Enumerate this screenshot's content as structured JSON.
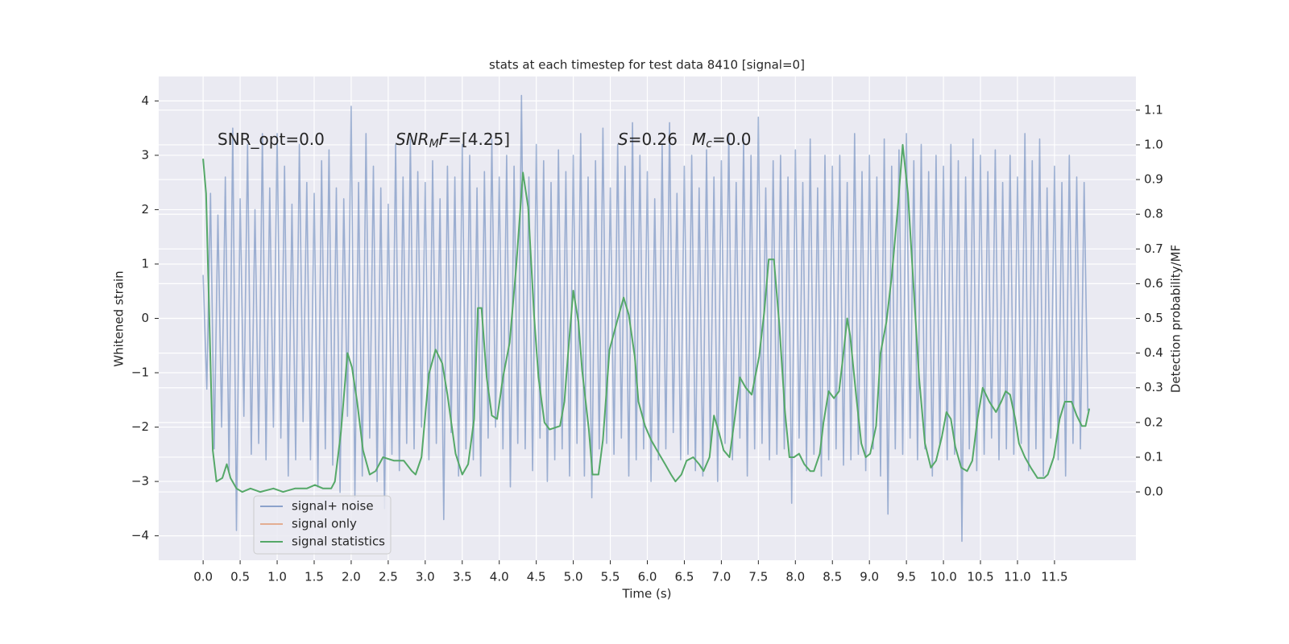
{
  "chart_data": {
    "type": "line",
    "title": "stats at each timestep for test data 8410 [signal=0]",
    "x_label": "Time (s)",
    "y_label": "Whitened strain",
    "y2_label": "Detection probability/MF",
    "annotations": [
      {
        "parts": [
          "SNR_opt=0.0"
        ]
      },
      {
        "parts": [
          "SNR",
          "M",
          "F",
          "=[4.25]"
        ]
      },
      {
        "parts": [
          "S",
          "=0.26"
        ]
      },
      {
        "parts": [
          "M",
          "c",
          "=0.0"
        ]
      }
    ],
    "grid": true,
    "legend_loc": "lower left",
    "xlim": [
      -0.6,
      12.6
    ],
    "ylim": [
      -4.45,
      4.45
    ],
    "y2lim": [
      -0.197,
      1.197
    ],
    "xticks": [
      {
        "value": 0,
        "label": "0.0"
      },
      0.5,
      {
        "value": 1,
        "label": "1.0"
      },
      1.5,
      {
        "value": 2,
        "label": "2.0"
      },
      2.5,
      {
        "value": 3,
        "label": "3.0"
      },
      3.5,
      {
        "value": 4,
        "label": "4.0"
      },
      4.5,
      {
        "value": 5,
        "label": "5.0"
      },
      5.5,
      {
        "value": 6,
        "label": "6.0"
      },
      6.5,
      {
        "value": 7,
        "label": "7.0"
      },
      7.5,
      {
        "value": 8,
        "label": "8.0"
      },
      8.5,
      {
        "value": 9,
        "label": "9.0"
      },
      9.5,
      {
        "value": 10,
        "label": "10.0"
      },
      10.5,
      {
        "value": 11,
        "label": "11.0"
      },
      11.5
    ],
    "yticks": [
      {
        "value": -4,
        "label": "−4"
      },
      {
        "value": -3,
        "label": "−3"
      },
      {
        "value": -2,
        "label": "−2"
      },
      {
        "value": -1,
        "label": "−1"
      },
      0,
      1,
      2,
      3,
      4
    ],
    "y2ticks": [
      {
        "value": 0,
        "label": "0.0"
      },
      0.1,
      0.2,
      0.3,
      0.4,
      0.5,
      0.6,
      0.7,
      0.8,
      0.9,
      {
        "value": 1,
        "label": "1.0"
      },
      1.1
    ],
    "series": [
      {
        "name": "signal+ noise",
        "color": "#4c72b0",
        "x": [
          0,
          0.05,
          0.1,
          0.15,
          0.2,
          0.25,
          0.3,
          0.35,
          0.4,
          0.45,
          0.5,
          0.55,
          0.6,
          0.65,
          0.7,
          0.75,
          0.8,
          0.85,
          0.9,
          0.95,
          1,
          1.05,
          1.1,
          1.15,
          1.2,
          1.25,
          1.3,
          1.35,
          1.4,
          1.45,
          1.5,
          1.55,
          1.6,
          1.65,
          1.7,
          1.75,
          1.8,
          1.85,
          1.9,
          1.95,
          2,
          2.05,
          2.1,
          2.15,
          2.2,
          2.25,
          2.3,
          2.35,
          2.4,
          2.45,
          2.5,
          2.55,
          2.6,
          2.65,
          2.7,
          2.75,
          2.8,
          2.85,
          2.9,
          2.95,
          3,
          3.05,
          3.1,
          3.15,
          3.2,
          3.25,
          3.3,
          3.35,
          3.4,
          3.45,
          3.5,
          3.55,
          3.6,
          3.65,
          3.7,
          3.75,
          3.8,
          3.85,
          3.9,
          3.95,
          4,
          4.05,
          4.1,
          4.15,
          4.2,
          4.25,
          4.3,
          4.35,
          4.4,
          4.45,
          4.5,
          4.55,
          4.6,
          4.65,
          4.7,
          4.75,
          4.8,
          4.85,
          4.9,
          4.95,
          5,
          5.05,
          5.1,
          5.15,
          5.2,
          5.25,
          5.3,
          5.35,
          5.4,
          5.45,
          5.5,
          5.55,
          5.6,
          5.65,
          5.7,
          5.75,
          5.8,
          5.85,
          5.9,
          5.95,
          6,
          6.05,
          6.1,
          6.15,
          6.2,
          6.25,
          6.3,
          6.35,
          6.4,
          6.45,
          6.5,
          6.55,
          6.6,
          6.65,
          6.7,
          6.75,
          6.8,
          6.85,
          6.9,
          6.95,
          7,
          7.05,
          7.1,
          7.15,
          7.2,
          7.25,
          7.3,
          7.35,
          7.4,
          7.45,
          7.5,
          7.55,
          7.6,
          7.65,
          7.7,
          7.75,
          7.8,
          7.85,
          7.9,
          7.95,
          8,
          8.05,
          8.1,
          8.15,
          8.2,
          8.25,
          8.3,
          8.35,
          8.4,
          8.45,
          8.5,
          8.55,
          8.6,
          8.65,
          8.7,
          8.75,
          8.8,
          8.85,
          8.9,
          8.95,
          9,
          9.05,
          9.1,
          9.15,
          9.2,
          9.25,
          9.3,
          9.35,
          9.4,
          9.45,
          9.5,
          9.55,
          9.6,
          9.65,
          9.7,
          9.75,
          9.8,
          9.85,
          9.9,
          9.95,
          10,
          10.05,
          10.1,
          10.15,
          10.2,
          10.25,
          10.3,
          10.35,
          10.4,
          10.45,
          10.5,
          10.55,
          10.6,
          10.65,
          10.7,
          10.75,
          10.8,
          10.85,
          10.9,
          10.95,
          11,
          11.05,
          11.1,
          11.15,
          11.2,
          11.25,
          11.3,
          11.35,
          11.4,
          11.45,
          11.5,
          11.55,
          11.6,
          11.65,
          11.7,
          11.75,
          11.8,
          11.85,
          11.9,
          11.95
        ],
        "values": [
          0.8,
          -1.3,
          2.3,
          -2.4,
          1.9,
          -2.0,
          2.6,
          -2.8,
          3.5,
          -3.9,
          2.2,
          -1.8,
          3.2,
          -2.5,
          2.0,
          -2.3,
          3.4,
          -2.6,
          2.4,
          -2.0,
          3.4,
          -2.2,
          2.8,
          -2.9,
          2.1,
          -2.6,
          3.2,
          -1.9,
          2.5,
          -2.6,
          2.3,
          -3.1,
          2.9,
          -2.4,
          3.1,
          -2.7,
          2.4,
          -3.2,
          2.2,
          -1.8,
          3.9,
          -3.3,
          2.5,
          -2.9,
          3.4,
          -2.2,
          2.8,
          -3.0,
          2.4,
          -3.5,
          2.1,
          -2.5,
          3.2,
          -2.8,
          2.6,
          -2.3,
          3.3,
          -2.4,
          2.7,
          -2.0,
          2.5,
          -2.6,
          2.9,
          -2.3,
          2.2,
          -3.7,
          2.8,
          -2.1,
          2.6,
          -2.9,
          3.2,
          -2.4,
          3.0,
          -2.6,
          2.4,
          -2.9,
          2.7,
          -2.2,
          3.3,
          -2.0,
          2.6,
          -2.4,
          3.0,
          -3.1,
          2.8,
          -2.3,
          4.1,
          -2.4,
          2.6,
          -2.8,
          3.2,
          -2.2,
          2.9,
          -3.0,
          2.5,
          -2.6,
          3.1,
          -2.4,
          2.7,
          -2.9,
          3.0,
          -2.3,
          3.4,
          -2.9,
          2.6,
          -3.3,
          2.9,
          -2.4,
          3.5,
          -2.3,
          2.4,
          -2.5,
          3.2,
          -2.2,
          2.8,
          -2.9,
          3.6,
          -2.6,
          3.0,
          -2.4,
          2.7,
          -3.0,
          2.2,
          -2.6,
          3.2,
          -2.4,
          3.6,
          -2.1,
          2.3,
          -2.6,
          2.8,
          -2.5,
          3.0,
          -2.8,
          2.4,
          -2.9,
          3.1,
          -2.4,
          2.6,
          -3.0,
          2.9,
          -2.3,
          3.4,
          -2.6,
          2.5,
          -2.2,
          3.3,
          -2.9,
          3.0,
          -2.4,
          3.7,
          -2.3,
          2.4,
          -2.6,
          2.9,
          -2.5,
          3.0,
          -2.4,
          2.6,
          -3.4,
          3.1,
          -2.2,
          2.5,
          -2.8,
          3.3,
          -2.5,
          2.4,
          -2.9,
          3.0,
          -2.6,
          2.8,
          -2.4,
          3.0,
          -2.7,
          2.5,
          -2.6,
          3.4,
          -2.5,
          2.7,
          -2.8,
          3.0,
          -2.4,
          2.6,
          -2.9,
          3.3,
          -3.6,
          2.8,
          -2.4,
          3.1,
          -2.5,
          3.4,
          -2.2,
          2.9,
          -2.6,
          3.2,
          -2.4,
          2.7,
          -2.9,
          3.0,
          -2.3,
          2.8,
          -2.6,
          3.2,
          -2.5,
          2.9,
          -4.1,
          2.6,
          -2.4,
          3.3,
          -2.8,
          3.0,
          -2.5,
          2.7,
          -2.2,
          3.1,
          -2.6,
          2.5,
          -2.4,
          3.0,
          -2.5,
          2.6,
          -2.3,
          3.4,
          -2.8,
          2.9,
          -2.4,
          3.3,
          -2.9,
          2.4,
          -2.2,
          2.8,
          -2.6,
          2.5,
          -2.9,
          3.0,
          -2.3,
          2.6,
          -2.4,
          2.5,
          -1.7
        ]
      },
      {
        "name": "signal only",
        "color": "#dd8452",
        "x": [],
        "values": []
      },
      {
        "name": "signal statistics",
        "color": "#55a868",
        "axis": "y2",
        "x": [
          0,
          0.04,
          0.13,
          0.18,
          0.26,
          0.32,
          0.37,
          0.45,
          0.53,
          0.64,
          0.77,
          0.95,
          1.08,
          1.24,
          1.4,
          1.51,
          1.62,
          1.73,
          1.78,
          1.86,
          1.95,
          2.01,
          2.08,
          2.16,
          2.25,
          2.33,
          2.43,
          2.58,
          2.71,
          2.82,
          2.87,
          2.95,
          3.05,
          3.14,
          3.23,
          3.3,
          3.41,
          3.5,
          3.58,
          3.66,
          3.71,
          3.76,
          3.83,
          3.9,
          3.97,
          4.05,
          4.14,
          4.23,
          4.32,
          4.39,
          4.47,
          4.53,
          4.61,
          4.68,
          4.82,
          4.88,
          4.93,
          5.0,
          5.07,
          5.12,
          5.21,
          5.26,
          5.34,
          5.4,
          5.49,
          5.59,
          5.68,
          5.75,
          5.83,
          5.88,
          5.97,
          6.05,
          6.13,
          6.24,
          6.32,
          6.38,
          6.46,
          6.53,
          6.62,
          6.7,
          6.76,
          6.84,
          6.9,
          6.97,
          7.03,
          7.11,
          7.18,
          7.25,
          7.33,
          7.41,
          7.51,
          7.58,
          7.64,
          7.71,
          7.78,
          7.86,
          7.92,
          7.98,
          8.05,
          8.12,
          8.2,
          8.25,
          8.33,
          8.38,
          8.45,
          8.52,
          8.59,
          8.65,
          8.7,
          8.74,
          8.82,
          8.89,
          8.95,
          9.01,
          9.09,
          9.15,
          9.23,
          9.3,
          9.38,
          9.45,
          9.52,
          9.6,
          9.67,
          9.75,
          9.83,
          9.9,
          9.98,
          10.04,
          10.1,
          10.16,
          10.24,
          10.32,
          10.39,
          10.46,
          10.53,
          10.62,
          10.71,
          10.78,
          10.84,
          10.9,
          10.97,
          11.02,
          11.1,
          11.18,
          11.27,
          11.36,
          11.41,
          11.49,
          11.57,
          11.64,
          11.73,
          11.8,
          11.87,
          11.92,
          11.97
        ],
        "values": [
          0.96,
          0.86,
          0.12,
          0.03,
          0.04,
          0.08,
          0.04,
          0.01,
          0.0,
          0.01,
          0.0,
          0.01,
          0.0,
          0.01,
          0.01,
          0.02,
          0.01,
          0.01,
          0.03,
          0.17,
          0.4,
          0.36,
          0.26,
          0.12,
          0.05,
          0.06,
          0.1,
          0.09,
          0.09,
          0.06,
          0.05,
          0.1,
          0.34,
          0.41,
          0.37,
          0.28,
          0.11,
          0.05,
          0.08,
          0.21,
          0.53,
          0.53,
          0.33,
          0.22,
          0.21,
          0.33,
          0.43,
          0.65,
          0.92,
          0.82,
          0.51,
          0.33,
          0.2,
          0.18,
          0.19,
          0.26,
          0.4,
          0.58,
          0.49,
          0.35,
          0.18,
          0.05,
          0.05,
          0.15,
          0.41,
          0.49,
          0.56,
          0.51,
          0.39,
          0.26,
          0.19,
          0.15,
          0.12,
          0.08,
          0.05,
          0.03,
          0.05,
          0.09,
          0.1,
          0.08,
          0.06,
          0.1,
          0.22,
          0.17,
          0.12,
          0.1,
          0.21,
          0.33,
          0.3,
          0.28,
          0.39,
          0.52,
          0.67,
          0.67,
          0.49,
          0.23,
          0.1,
          0.1,
          0.11,
          0.08,
          0.06,
          0.06,
          0.11,
          0.2,
          0.29,
          0.27,
          0.29,
          0.4,
          0.5,
          0.45,
          0.28,
          0.14,
          0.1,
          0.11,
          0.19,
          0.4,
          0.49,
          0.62,
          0.81,
          1.0,
          0.86,
          0.58,
          0.33,
          0.14,
          0.07,
          0.09,
          0.16,
          0.23,
          0.21,
          0.13,
          0.07,
          0.06,
          0.09,
          0.21,
          0.3,
          0.26,
          0.23,
          0.26,
          0.29,
          0.28,
          0.21,
          0.14,
          0.1,
          0.07,
          0.04,
          0.04,
          0.05,
          0.1,
          0.21,
          0.26,
          0.26,
          0.22,
          0.19,
          0.19,
          0.24
        ]
      }
    ]
  }
}
